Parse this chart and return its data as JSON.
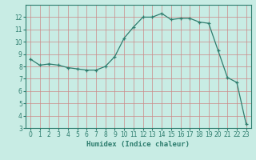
{
  "x_vals": [
    0,
    1,
    2,
    3,
    4,
    5,
    6,
    7,
    8,
    9,
    10,
    11,
    12,
    13,
    14,
    15,
    16,
    17,
    18,
    19,
    20,
    21,
    22,
    23
  ],
  "y_vals": [
    8.6,
    8.1,
    8.2,
    8.1,
    7.9,
    7.8,
    7.7,
    7.7,
    8.0,
    8.8,
    10.3,
    11.2,
    12.0,
    12.0,
    12.3,
    11.8,
    11.9,
    11.9,
    11.6,
    11.5,
    9.3,
    7.1,
    6.7,
    3.3
  ],
  "line_color": "#2e7d6e",
  "bg_color": "#c8ece4",
  "grid_major_color": "#cc8888",
  "grid_minor_color": "#ddbcbc",
  "xlabel": "Humidex (Indice chaleur)",
  "ylim": [
    3,
    13
  ],
  "xlim": [
    -0.5,
    23.5
  ],
  "yticks": [
    3,
    4,
    5,
    6,
    7,
    8,
    9,
    10,
    11,
    12
  ],
  "xticks": [
    0,
    1,
    2,
    3,
    4,
    5,
    6,
    7,
    8,
    9,
    10,
    11,
    12,
    13,
    14,
    15,
    16,
    17,
    18,
    19,
    20,
    21,
    22,
    23
  ],
  "tick_fontsize": 5.5,
  "xlabel_fontsize": 6.5,
  "linewidth": 0.9,
  "markersize": 3.0
}
